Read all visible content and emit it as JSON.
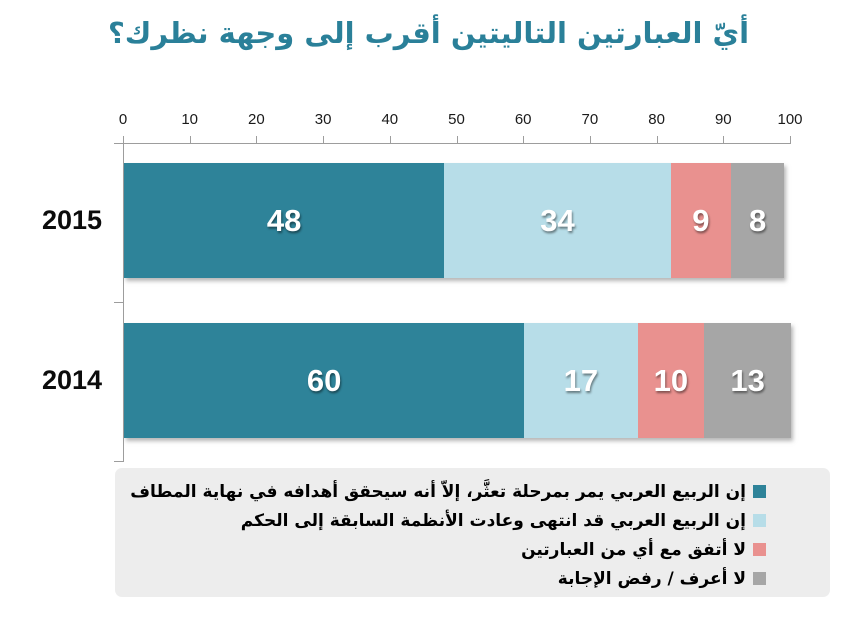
{
  "chart_data": {
    "type": "bar",
    "orientation": "horizontal",
    "stacked": true,
    "title": "أيّ العبارتين التاليتين أقرب إلى وجهة نظرك؟",
    "title_color": "#2a8099",
    "categories": [
      "2015",
      "2014"
    ],
    "series": [
      {
        "name": "إن الربيع العربي يمر بمرحلة تعثَّر، إلاّ أنه سيحقق أهدافه في نهاية المطاف",
        "color": "#2e8399",
        "values": [
          48,
          60
        ]
      },
      {
        "name": "إن الربيع العربي قد انتهى وعادت الأنظمة السابقة إلى الحكم",
        "color": "#b7dde8",
        "values": [
          34,
          17
        ]
      },
      {
        "name": "لا أتفق مع أي من العبارتين",
        "color": "#e9918f",
        "values": [
          9,
          10
        ]
      },
      {
        "name": "لا أعرف /  رفض الإجابة",
        "color": "#a6a6a6",
        "values": [
          8,
          13
        ]
      }
    ],
    "xlim": [
      0,
      100
    ],
    "x_ticks": [
      0,
      10,
      20,
      30,
      40,
      50,
      60,
      70,
      80,
      90,
      100
    ],
    "axis_position": "top",
    "grid": false,
    "legend_position": "bottom",
    "value_label_style": "white bold inside segments"
  }
}
